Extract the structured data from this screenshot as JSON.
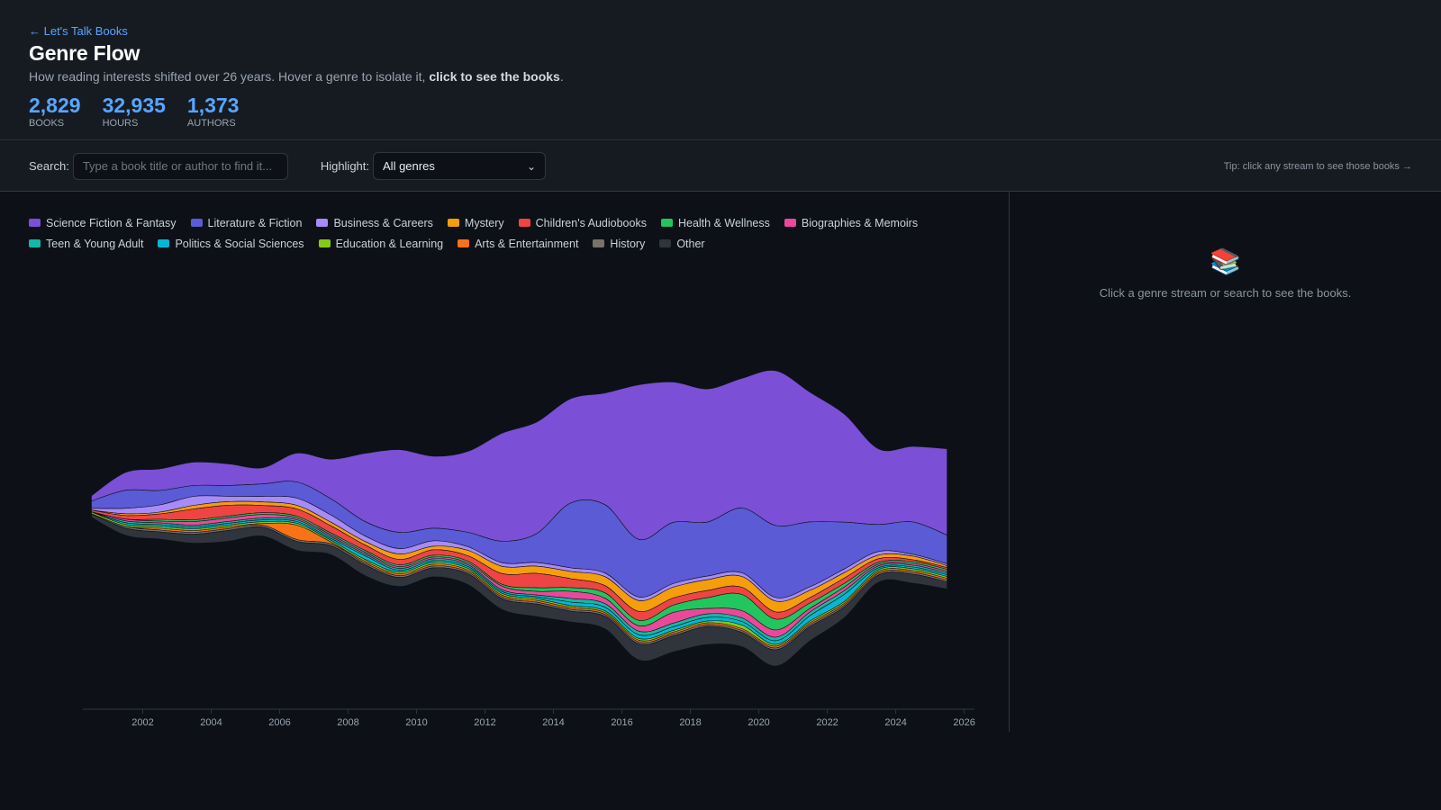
{
  "header": {
    "back_link": "← Let's Talk Books",
    "title": "Genre Flow",
    "subtitle_plain": "How reading interests shifted over 26 years. Hover a genre to isolate it, ",
    "subtitle_bold": "click to see the books",
    "subtitle_end": ".",
    "stats": [
      {
        "value": "2,829",
        "label": "BOOKS"
      },
      {
        "value": "32,935",
        "label": "HOURS"
      },
      {
        "value": "1,373",
        "label": "AUTHORS"
      }
    ]
  },
  "toolbar": {
    "search_label": "Search:",
    "search_placeholder": "Type a book title or author to find it...",
    "highlight_label": "Highlight:",
    "highlight_value": "All genres",
    "tip": "Tip: click any stream to see those books →"
  },
  "side_panel": {
    "icon": "books-icon",
    "empty_text": "Click a genre stream or search to see the books."
  },
  "chart_data": {
    "type": "area",
    "variant": "streamgraph",
    "x_ticks": [
      "2002",
      "2004",
      "2006",
      "2008",
      "2010",
      "2012",
      "2014",
      "2016",
      "2018",
      "2020",
      "2022",
      "2024",
      "2026"
    ],
    "x_range": [
      2000.25,
      2026.3
    ],
    "grid": false,
    "legend_position": "top-left",
    "x": [
      2000.5,
      2001.5,
      2002.5,
      2003.5,
      2004.5,
      2005.5,
      2006.5,
      2007.5,
      2008.5,
      2009.5,
      2010.5,
      2011.5,
      2012.5,
      2013.5,
      2014.5,
      2015.5,
      2016.5,
      2017.5,
      2018.5,
      2019.5,
      2020.5,
      2021.5,
      2022.5,
      2023.5,
      2024.5,
      2025.5
    ],
    "series": [
      {
        "name": "Science Fiction & Fantasy",
        "color": "#7b4fd6",
        "values": [
          3,
          10,
          12,
          13,
          12,
          9,
          16,
          22,
          38,
          46,
          40,
          45,
          60,
          62,
          58,
          62,
          86,
          78,
          74,
          72,
          86,
          72,
          60,
          42,
          42,
          48
        ]
      },
      {
        "name": "Literature & Fiction",
        "color": "#5b5bd6",
        "values": [
          4,
          10,
          8,
          6,
          6,
          7,
          9,
          9,
          8,
          9,
          7,
          8,
          12,
          16,
          36,
          38,
          32,
          34,
          30,
          36,
          40,
          36,
          26,
          15,
          18,
          16
        ]
      },
      {
        "name": "Business & Careers",
        "color": "#a78bfa",
        "values": [
          1,
          3,
          4,
          5,
          3,
          3,
          4,
          4,
          3,
          3,
          3,
          2,
          2,
          2,
          2,
          2,
          2,
          2,
          2,
          2,
          2,
          2,
          2,
          2,
          1,
          1
        ]
      },
      {
        "name": "Mystery",
        "color": "#f59e0b",
        "values": [
          0,
          1,
          1,
          2,
          2,
          2,
          2,
          2,
          2,
          3,
          2,
          3,
          4,
          4,
          4,
          5,
          6,
          6,
          6,
          6,
          6,
          4,
          3,
          2,
          2,
          1
        ]
      },
      {
        "name": "Children's Audiobooks",
        "color": "#ef4444",
        "values": [
          1,
          2,
          3,
          6,
          6,
          4,
          4,
          4,
          3,
          3,
          3,
          3,
          6,
          8,
          5,
          4,
          5,
          4,
          4,
          4,
          4,
          3,
          3,
          2,
          1,
          1
        ]
      },
      {
        "name": "Health & Wellness",
        "color": "#22c55e",
        "values": [
          0,
          0,
          1,
          1,
          1,
          1,
          1,
          1,
          1,
          1,
          1,
          1,
          1,
          2,
          2,
          3,
          3,
          4,
          6,
          9,
          6,
          3,
          2,
          1,
          1,
          1
        ]
      },
      {
        "name": "Biographies & Memoirs",
        "color": "#ec4899",
        "values": [
          0,
          1,
          1,
          2,
          2,
          2,
          1,
          1,
          1,
          1,
          1,
          1,
          2,
          2,
          4,
          3,
          3,
          6,
          3,
          4,
          4,
          2,
          2,
          1,
          1,
          1
        ]
      },
      {
        "name": "Teen & Young Adult",
        "color": "#14b8a6",
        "values": [
          0,
          1,
          1,
          1,
          1,
          1,
          1,
          1,
          1,
          1,
          1,
          1,
          1,
          1,
          2,
          2,
          2,
          2,
          2,
          2,
          2,
          2,
          2,
          1,
          1,
          1
        ]
      },
      {
        "name": "Politics & Social Sciences",
        "color": "#06b6d4",
        "values": [
          0,
          1,
          1,
          1,
          1,
          1,
          1,
          1,
          2,
          1,
          1,
          1,
          1,
          1,
          2,
          2,
          2,
          2,
          2,
          2,
          2,
          3,
          4,
          1,
          1,
          1
        ]
      },
      {
        "name": "Education & Learning",
        "color": "#84cc16",
        "values": [
          1,
          1,
          1,
          1,
          1,
          1,
          1,
          1,
          1,
          1,
          1,
          1,
          1,
          1,
          1,
          1,
          1,
          1,
          1,
          2,
          1,
          1,
          1,
          1,
          1,
          1
        ]
      },
      {
        "name": "Arts & Entertainment",
        "color": "#f97316",
        "values": [
          0,
          0,
          1,
          1,
          1,
          1,
          8,
          1,
          1,
          1,
          1,
          1,
          1,
          1,
          1,
          1,
          1,
          1,
          1,
          1,
          1,
          1,
          1,
          1,
          1,
          1
        ]
      },
      {
        "name": "History",
        "color": "#78716c",
        "values": [
          0,
          1,
          1,
          1,
          1,
          1,
          1,
          1,
          1,
          1,
          1,
          1,
          1,
          1,
          1,
          1,
          1,
          1,
          1,
          1,
          1,
          1,
          1,
          1,
          1,
          1
        ]
      },
      {
        "name": "Other",
        "color": "#30343c",
        "values": [
          2,
          4,
          4,
          5,
          6,
          5,
          5,
          5,
          6,
          5,
          5,
          6,
          6,
          7,
          6,
          7,
          9,
          9,
          10,
          8,
          9,
          8,
          6,
          4,
          5,
          4
        ]
      }
    ]
  }
}
